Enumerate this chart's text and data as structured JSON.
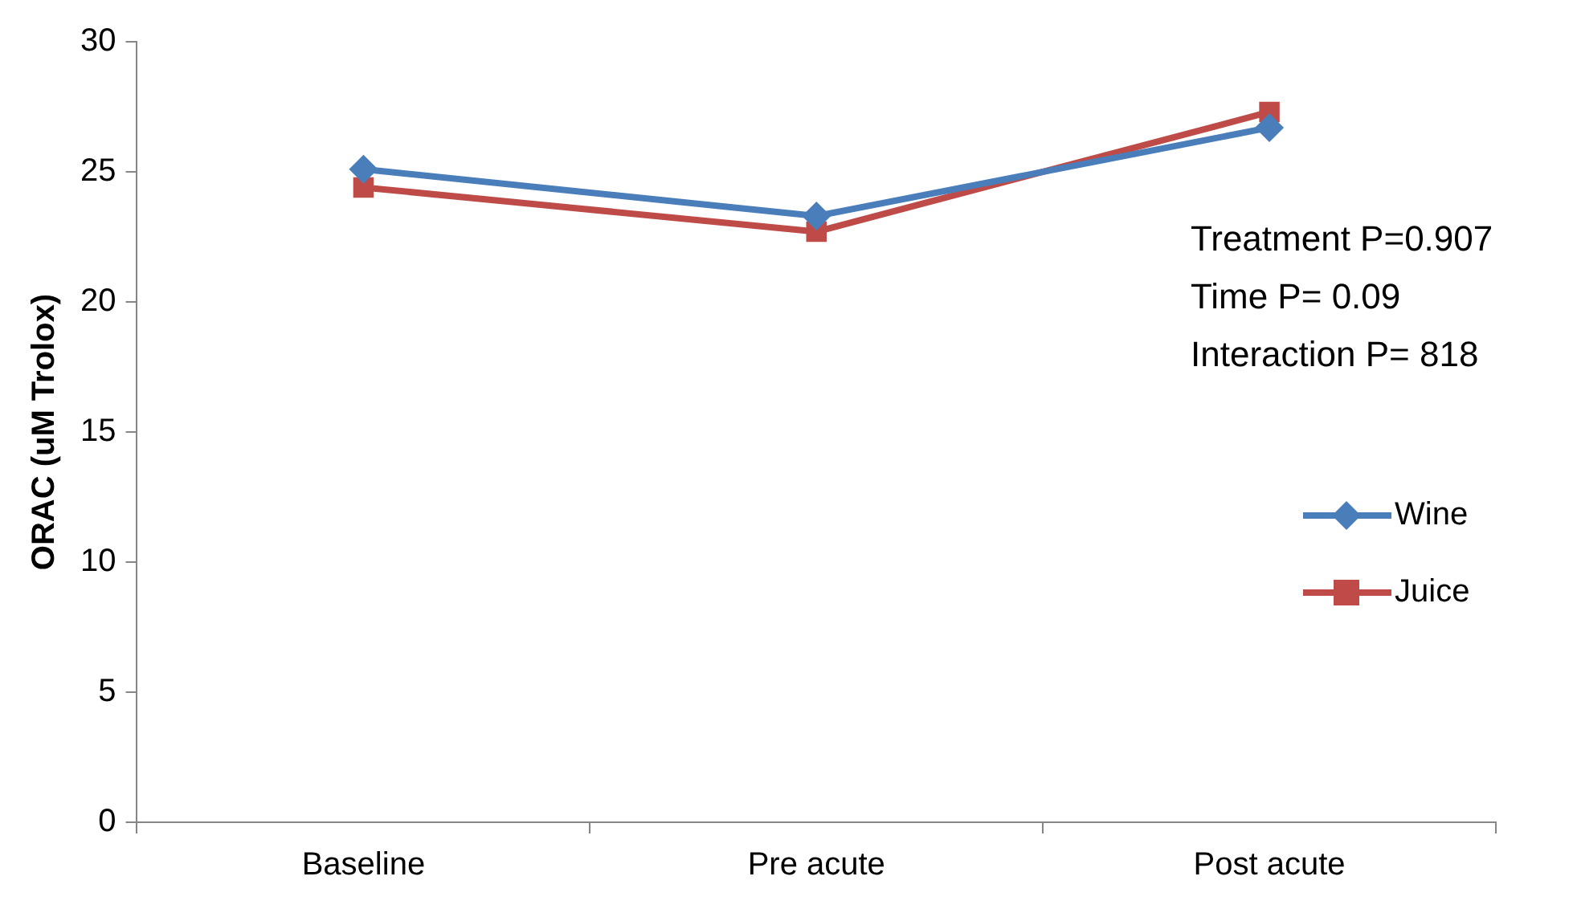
{
  "chart_data": {
    "type": "line",
    "ylabel": "ORAC (uM Trolox)",
    "categories": [
      "Baseline",
      "Pre acute",
      "Post acute"
    ],
    "series": [
      {
        "name": "Wine",
        "color": "#4a7ebb",
        "marker": "diamond",
        "values": [
          25.1,
          23.3,
          26.7
        ]
      },
      {
        "name": "Juice",
        "color": "#be4b48",
        "marker": "square",
        "values": [
          24.4,
          22.7,
          27.3
        ]
      }
    ],
    "ylim": [
      0,
      30
    ],
    "yticks": [
      0,
      5,
      10,
      15,
      20,
      25,
      30
    ],
    "grid": false,
    "legend": "right",
    "line_style": "solid",
    "annotations": [
      "Treatment P=0.907",
      "Time P= 0.09",
      "Interaction P= 818"
    ]
  }
}
